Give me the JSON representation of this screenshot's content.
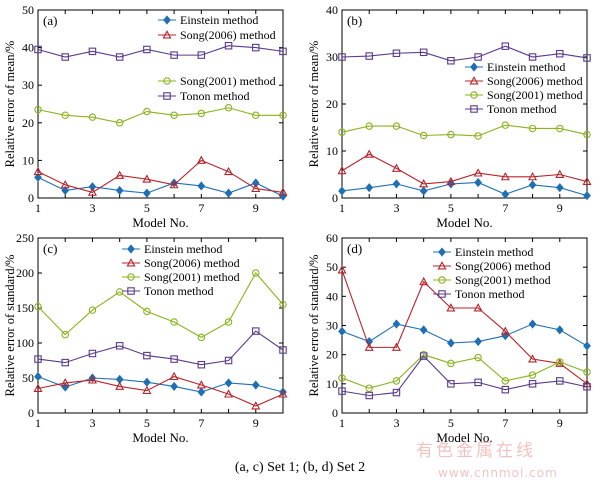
{
  "caption": "(a, c) Set 1; (b, d) Set 2",
  "watermark": {
    "line1": "有色金属在线",
    "line2": "www.cnnmol.com"
  },
  "series_styles": [
    {
      "color": "#1f6fb4",
      "marker": "diamond"
    },
    {
      "color": "#b8232a",
      "marker": "triangle"
    },
    {
      "color": "#8ab31e",
      "marker": "circle"
    },
    {
      "color": "#5a3a8c",
      "marker": "square"
    }
  ],
  "chart_data": [
    {
      "panel_label": "(a)",
      "type": "line",
      "xlabel": "Model No.",
      "ylabel": "Relative error of mean/%",
      "x": [
        1,
        2,
        3,
        4,
        5,
        6,
        7,
        8,
        9,
        10
      ],
      "xticks": [
        1,
        3,
        5,
        7,
        9
      ],
      "ylim": [
        0,
        50
      ],
      "yticks": [
        0,
        10,
        20,
        30,
        40,
        50
      ],
      "series": [
        {
          "name": "Einstein method",
          "values": [
            5.5,
            2.0,
            3.0,
            2.0,
            1.3,
            4.0,
            3.2,
            1.3,
            4.0,
            0.5
          ]
        },
        {
          "name": "Song(2006) method",
          "values": [
            7.0,
            3.5,
            1.5,
            6.0,
            5.0,
            3.5,
            10.0,
            7.0,
            2.5,
            1.5
          ]
        },
        {
          "name": "Song(2001) method",
          "values": [
            23.5,
            22.0,
            21.5,
            20.0,
            23.0,
            22.0,
            22.5,
            24.0,
            22.0,
            22.0
          ]
        },
        {
          "name": "Tonon method",
          "values": [
            39.5,
            37.5,
            39.0,
            37.5,
            39.5,
            38.0,
            38.0,
            40.5,
            40.0,
            39.0
          ]
        }
      ],
      "legend_groups": [
        {
          "series": [
            0,
            1
          ],
          "position": "top-right"
        },
        {
          "series": [
            2,
            3
          ],
          "position": "middle-right"
        }
      ]
    },
    {
      "panel_label": "(b)",
      "type": "line",
      "xlabel": "Model No.",
      "ylabel": "Relative error of mean/%",
      "x": [
        1,
        2,
        3,
        4,
        5,
        6,
        7,
        8,
        9,
        10
      ],
      "xticks": [
        1,
        3,
        5,
        7,
        9
      ],
      "ylim": [
        0,
        40
      ],
      "yticks": [
        0,
        10,
        20,
        30,
        40
      ],
      "series": [
        {
          "name": "Einstein method",
          "values": [
            1.5,
            2.2,
            3.0,
            1.5,
            3.0,
            3.3,
            0.8,
            2.8,
            2.2,
            0.5
          ]
        },
        {
          "name": "Song(2006) method",
          "values": [
            5.8,
            9.3,
            6.3,
            3.0,
            3.5,
            5.3,
            4.5,
            4.5,
            5.0,
            3.5
          ]
        },
        {
          "name": "Song(2001) method",
          "values": [
            14.0,
            15.3,
            15.3,
            13.3,
            13.5,
            13.2,
            15.5,
            14.8,
            14.8,
            13.5
          ]
        },
        {
          "name": "Tonon method",
          "values": [
            30.0,
            30.2,
            30.8,
            31.0,
            29.2,
            30.0,
            32.3,
            30.0,
            30.7,
            29.8
          ]
        }
      ],
      "legend_groups": [
        {
          "series": [
            0,
            1,
            2,
            3
          ],
          "position": "middle-right"
        }
      ]
    },
    {
      "panel_label": "(c)",
      "type": "line",
      "xlabel": "Model No.",
      "ylabel": "Relative error of standard/%",
      "x": [
        1,
        2,
        3,
        4,
        5,
        6,
        7,
        8,
        9,
        10
      ],
      "xticks": [
        1,
        3,
        5,
        7,
        9
      ],
      "ylim": [
        0,
        250
      ],
      "yticks": [
        0,
        50,
        100,
        150,
        200,
        250
      ],
      "series": [
        {
          "name": "Einstein method",
          "values": [
            52,
            37,
            50,
            48,
            44,
            38,
            30,
            43,
            40,
            30
          ]
        },
        {
          "name": "Song(2006) method",
          "values": [
            35,
            43,
            47,
            38,
            32,
            52,
            40,
            27,
            10,
            27
          ]
        },
        {
          "name": "Song(2001) method",
          "values": [
            152,
            112,
            147,
            173,
            145,
            130,
            108,
            130,
            200,
            155
          ]
        },
        {
          "name": "Tonon method",
          "values": [
            77,
            72,
            85,
            96,
            82,
            77,
            69,
            75,
            117,
            90
          ]
        }
      ],
      "legend_groups": [
        {
          "series": [
            0,
            1,
            2,
            3
          ],
          "position": "top-right"
        }
      ]
    },
    {
      "panel_label": "(d)",
      "type": "line",
      "xlabel": "Model No.",
      "ylabel": "Relative error of standard/%",
      "x": [
        1,
        2,
        3,
        4,
        5,
        6,
        7,
        8,
        9,
        10
      ],
      "xticks": [
        1,
        3,
        5,
        7,
        9
      ],
      "ylim": [
        0,
        60
      ],
      "yticks": [
        0,
        10,
        20,
        30,
        40,
        50,
        60
      ],
      "series": [
        {
          "name": "Einstein method",
          "values": [
            28,
            24.5,
            30.5,
            28.5,
            24,
            24.5,
            26.5,
            30.5,
            28.5,
            23
          ]
        },
        {
          "name": "Song(2006) method",
          "values": [
            49,
            22.5,
            22.5,
            45,
            36,
            36,
            28,
            18.5,
            17,
            10
          ]
        },
        {
          "name": "Song(2001) method",
          "values": [
            12,
            8.5,
            11,
            20,
            17,
            19,
            11,
            13,
            17.5,
            14
          ]
        },
        {
          "name": "Tonon method",
          "values": [
            7.5,
            6,
            7,
            19.5,
            10,
            10.5,
            8,
            10,
            11,
            9
          ]
        }
      ],
      "legend_groups": [
        {
          "series": [
            0,
            1,
            2,
            3
          ],
          "position": "top-right"
        }
      ]
    }
  ]
}
